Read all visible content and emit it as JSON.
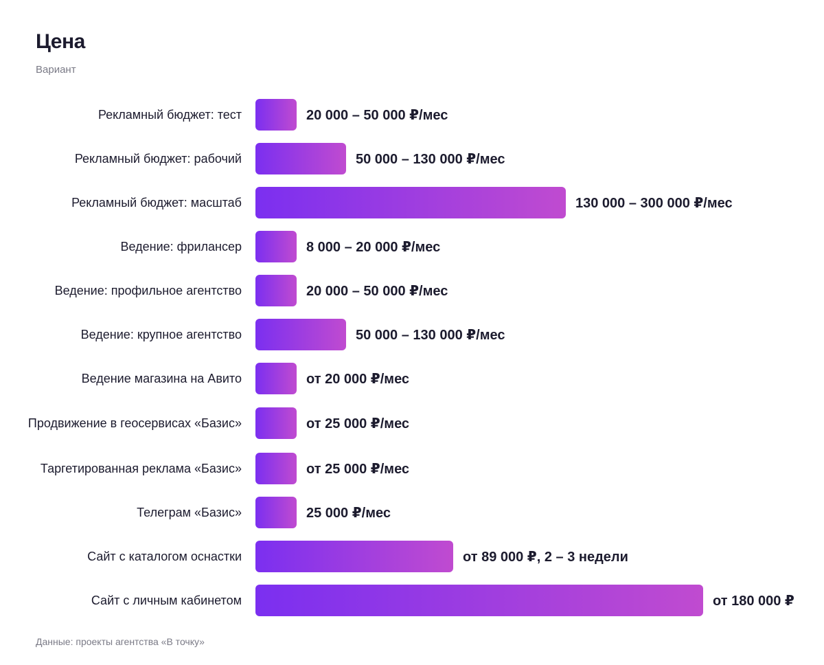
{
  "title": "Цена",
  "subtitle": "Вариант",
  "source": "Данные: проекты агентства «В точку»",
  "colors": {
    "bar_start": "#7b2ff0",
    "bar_end": "#c04bd0",
    "text": "#1c1b2e",
    "muted": "#7a7a86"
  },
  "chart_data": {
    "type": "bar",
    "orientation": "horizontal",
    "title": "Цена",
    "subtitle": "Вариант",
    "xlabel": "",
    "ylabel": "",
    "grid": false,
    "xlim": [
      0,
      200000
    ],
    "categories": [
      "Рекламный бюджет: тест",
      "Рекламный бюджет: рабочий",
      "Рекламный бюджет: масштаб",
      "Ведение: фрилансер",
      "Ведение: профильное агентство",
      "Ведение: крупное агентство",
      "Ведение магазина на Авито",
      "Продвижение в геосервисах «Базис»",
      "Таргетированная реклама «Базис»",
      "Телеграм «Базис»",
      "Сайт с каталогом оснастки",
      "Сайт с личным кабинетом"
    ],
    "values": [
      20000,
      50000,
      130000,
      8000,
      20000,
      50000,
      20000,
      25000,
      25000,
      25000,
      89000,
      180000
    ],
    "value_labels": [
      "20 000 – 50 000 ₽/мес",
      "50 000 – 130 000 ₽/мес",
      "130 000 – 300 000 ₽/мес",
      "8 000 – 20 000 ₽/мес",
      "20 000 – 50 000 ₽/мес",
      "50 000 – 130 000 ₽/мес",
      "от 20 000 ₽/мес",
      "от 25 000 ₽/мес",
      "от 25 000 ₽/мес",
      "25 000 ₽/мес",
      "от 89 000 ₽, 2 – 3 недели",
      "от 180 000 ₽"
    ]
  }
}
